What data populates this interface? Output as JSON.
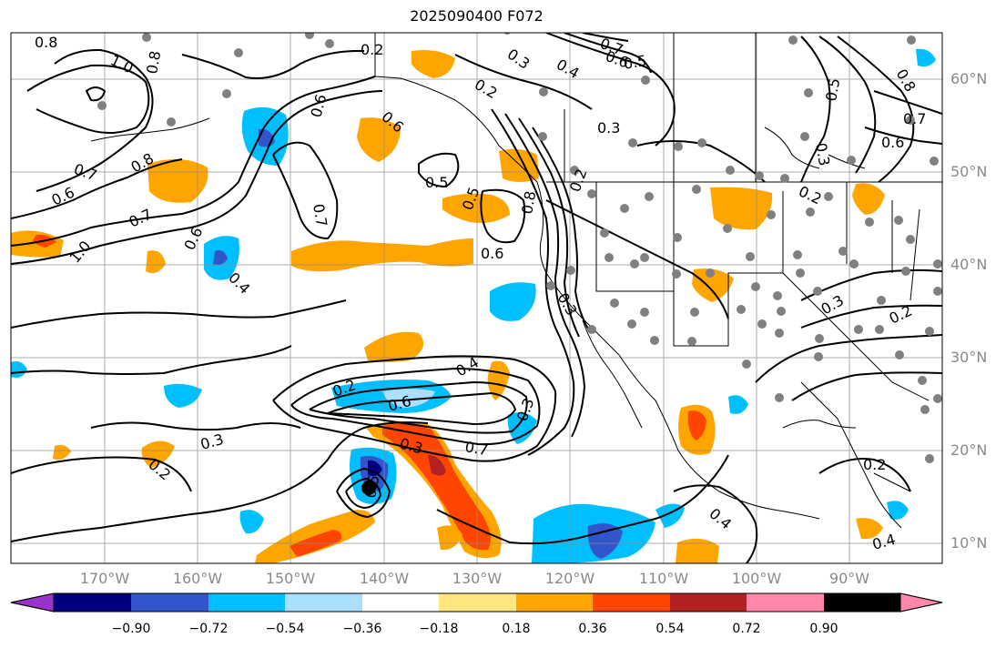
{
  "title": "2025090400 F072",
  "lat_labels": [
    "60°N",
    "50°N",
    "40°N",
    "30°N",
    "20°N",
    "10°N"
  ],
  "lon_labels": [
    "170°W",
    "160°W",
    "150°W",
    "140°W",
    "130°W",
    "120°W",
    "110°W",
    "100°W",
    "90°W"
  ],
  "colorbar": {
    "ticks": [
      "−0.90",
      "−0.72",
      "−0.54",
      "−0.36",
      "−0.18",
      "0.18",
      "0.36",
      "0.54",
      "0.72",
      "0.90"
    ],
    "colors": [
      "#9933cc",
      "#000080",
      "#3355cc",
      "#00bfff",
      "#aadfff",
      "#ffffff",
      "#ffe680",
      "#ffa500",
      "#ff4500",
      "#b22222",
      "#ff88aa"
    ]
  },
  "contour_labels": [
    "0.8",
    "1.0",
    "0.8",
    "0.7",
    "0.6",
    "0.8",
    "0.7",
    "1.0",
    "0.6",
    "0.4",
    "0.6",
    "0.2",
    "0.6",
    "0.7",
    "0.5",
    "0.2",
    "0.3",
    "0.4",
    "0.7",
    "0.6",
    "0.5",
    "0.3",
    "0.8",
    "0.2",
    "0.6",
    "0.5",
    "0.3",
    "0.4",
    "0.6",
    "0.7",
    "0.2",
    "0.3",
    "0.2",
    "0.3",
    "0.3",
    "0.4",
    "0.6",
    "0.5",
    "0.7",
    "0.8",
    "0.3",
    "0.3",
    "0.5",
    "0.2",
    "0.2",
    "0.2",
    "0.4"
  ]
}
